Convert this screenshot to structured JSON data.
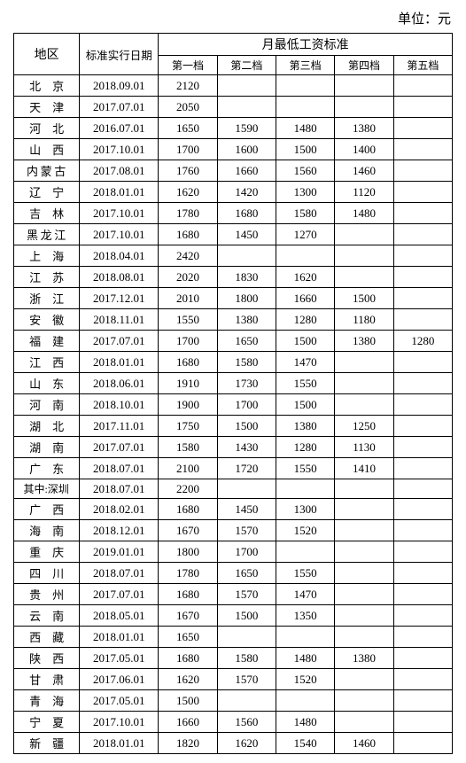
{
  "unit_label": "单位：元",
  "headers": {
    "region": "地区",
    "date": "标准实行日期",
    "month_group": "月最低工资标准",
    "tiers": [
      "第一档",
      "第二档",
      "第三档",
      "第四档",
      "第五档"
    ]
  },
  "rows": [
    {
      "region": "北　京",
      "spacing": "2",
      "date": "2018.09.01",
      "t1": "2120",
      "t2": "",
      "t3": "",
      "t4": "",
      "t5": ""
    },
    {
      "region": "天　津",
      "spacing": "2",
      "date": "2017.07.01",
      "t1": "2050",
      "t2": "",
      "t3": "",
      "t4": "",
      "t5": ""
    },
    {
      "region": "河　北",
      "spacing": "2",
      "date": "2016.07.01",
      "t1": "1650",
      "t2": "1590",
      "t3": "1480",
      "t4": "1380",
      "t5": ""
    },
    {
      "region": "山　西",
      "spacing": "2",
      "date": "2017.10.01",
      "t1": "1700",
      "t2": "1600",
      "t3": "1500",
      "t4": "1400",
      "t5": ""
    },
    {
      "region": "内蒙古",
      "spacing": "3",
      "date": "2017.08.01",
      "t1": "1760",
      "t2": "1660",
      "t3": "1560",
      "t4": "1460",
      "t5": ""
    },
    {
      "region": "辽　宁",
      "spacing": "2",
      "date": "2018.01.01",
      "t1": "1620",
      "t2": "1420",
      "t3": "1300",
      "t4": "1120",
      "t5": ""
    },
    {
      "region": "吉　林",
      "spacing": "2",
      "date": "2017.10.01",
      "t1": "1780",
      "t2": "1680",
      "t3": "1580",
      "t4": "1480",
      "t5": ""
    },
    {
      "region": "黑龙江",
      "spacing": "3",
      "date": "2017.10.01",
      "t1": "1680",
      "t2": "1450",
      "t3": "1270",
      "t4": "",
      "t5": ""
    },
    {
      "region": "上　海",
      "spacing": "2",
      "date": "2018.04.01",
      "t1": "2420",
      "t2": "",
      "t3": "",
      "t4": "",
      "t5": ""
    },
    {
      "region": "江　苏",
      "spacing": "2",
      "date": "2018.08.01",
      "t1": "2020",
      "t2": "1830",
      "t3": "1620",
      "t4": "",
      "t5": ""
    },
    {
      "region": "浙　江",
      "spacing": "2",
      "date": "2017.12.01",
      "t1": "2010",
      "t2": "1800",
      "t3": "1660",
      "t4": "1500",
      "t5": ""
    },
    {
      "region": "安　徽",
      "spacing": "2",
      "date": "2018.11.01",
      "t1": "1550",
      "t2": "1380",
      "t3": "1280",
      "t4": "1180",
      "t5": ""
    },
    {
      "region": "福　建",
      "spacing": "2",
      "date": "2017.07.01",
      "t1": "1700",
      "t2": "1650",
      "t3": "1500",
      "t4": "1380",
      "t5": "1280"
    },
    {
      "region": "江　西",
      "spacing": "2",
      "date": "2018.01.01",
      "t1": "1680",
      "t2": "1580",
      "t3": "1470",
      "t4": "",
      "t5": ""
    },
    {
      "region": "山　东",
      "spacing": "2",
      "date": "2018.06.01",
      "t1": "1910",
      "t2": "1730",
      "t3": "1550",
      "t4": "",
      "t5": ""
    },
    {
      "region": "河　南",
      "spacing": "2",
      "date": "2018.10.01",
      "t1": "1900",
      "t2": "1700",
      "t3": "1500",
      "t4": "",
      "t5": ""
    },
    {
      "region": "湖　北",
      "spacing": "2",
      "date": "2017.11.01",
      "t1": "1750",
      "t2": "1500",
      "t3": "1380",
      "t4": "1250",
      "t5": ""
    },
    {
      "region": "湖　南",
      "spacing": "2",
      "date": "2017.07.01",
      "t1": "1580",
      "t2": "1430",
      "t3": "1280",
      "t4": "1130",
      "t5": ""
    },
    {
      "region": "广　东",
      "spacing": "2",
      "date": "2018.07.01",
      "t1": "2100",
      "t2": "1720",
      "t3": "1550",
      "t4": "1410",
      "t5": ""
    },
    {
      "region": "其中:深圳",
      "spacing": "tight",
      "date": "2018.07.01",
      "t1": "2200",
      "t2": "",
      "t3": "",
      "t4": "",
      "t5": ""
    },
    {
      "region": "广　西",
      "spacing": "2",
      "date": "2018.02.01",
      "t1": "1680",
      "t2": "1450",
      "t3": "1300",
      "t4": "",
      "t5": ""
    },
    {
      "region": "海　南",
      "spacing": "2",
      "date": "2018.12.01",
      "t1": "1670",
      "t2": "1570",
      "t3": "1520",
      "t4": "",
      "t5": ""
    },
    {
      "region": "重　庆",
      "spacing": "2",
      "date": "2019.01.01",
      "t1": "1800",
      "t2": "1700",
      "t3": "",
      "t4": "",
      "t5": ""
    },
    {
      "region": "四　川",
      "spacing": "2",
      "date": "2018.07.01",
      "t1": "1780",
      "t2": "1650",
      "t3": "1550",
      "t4": "",
      "t5": ""
    },
    {
      "region": "贵　州",
      "spacing": "2",
      "date": "2017.07.01",
      "t1": "1680",
      "t2": "1570",
      "t3": "1470",
      "t4": "",
      "t5": ""
    },
    {
      "region": "云　南",
      "spacing": "2",
      "date": "2018.05.01",
      "t1": "1670",
      "t2": "1500",
      "t3": "1350",
      "t4": "",
      "t5": ""
    },
    {
      "region": "西　藏",
      "spacing": "2",
      "date": "2018.01.01",
      "t1": "1650",
      "t2": "",
      "t3": "",
      "t4": "",
      "t5": ""
    },
    {
      "region": "陕　西",
      "spacing": "2",
      "date": "2017.05.01",
      "t1": "1680",
      "t2": "1580",
      "t3": "1480",
      "t4": "1380",
      "t5": ""
    },
    {
      "region": "甘　肃",
      "spacing": "2",
      "date": "2017.06.01",
      "t1": "1620",
      "t2": "1570",
      "t3": "1520",
      "t4": "",
      "t5": ""
    },
    {
      "region": "青　海",
      "spacing": "2",
      "date": "2017.05.01",
      "t1": "1500",
      "t2": "",
      "t3": "",
      "t4": "",
      "t5": ""
    },
    {
      "region": "宁　夏",
      "spacing": "2",
      "date": "2017.10.01",
      "t1": "1660",
      "t2": "1560",
      "t3": "1480",
      "t4": "",
      "t5": ""
    },
    {
      "region": "新　疆",
      "spacing": "2",
      "date": "2018.01.01",
      "t1": "1820",
      "t2": "1620",
      "t3": "1540",
      "t4": "1460",
      "t5": ""
    }
  ]
}
